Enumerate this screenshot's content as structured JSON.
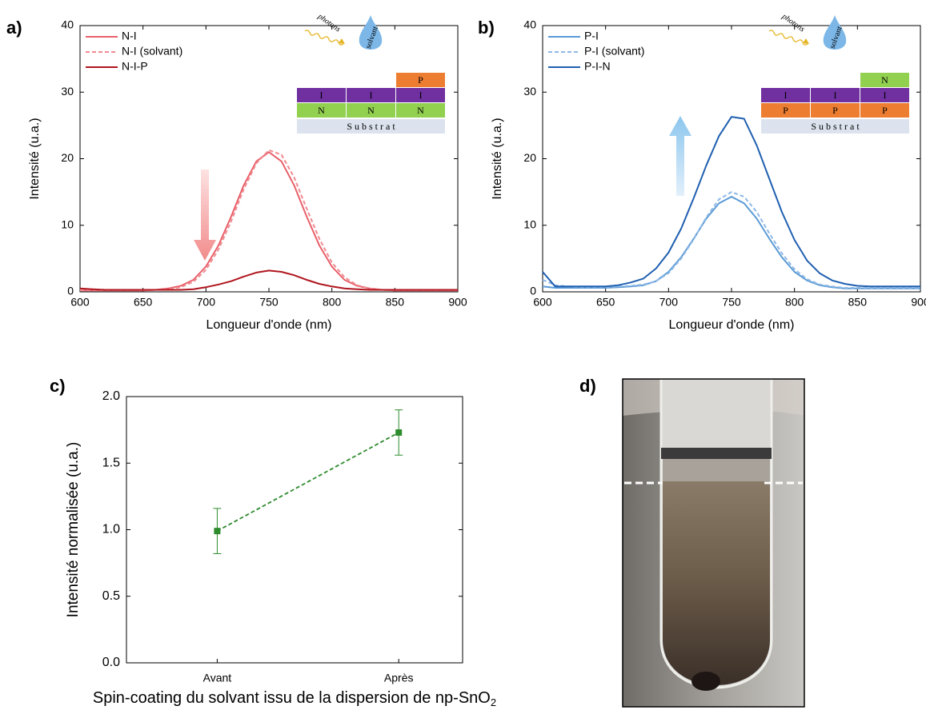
{
  "chart_data": [
    {
      "type": "line",
      "panel": "a)",
      "xlabel": "Longueur d'onde (nm)",
      "ylabel": "Intensité (u.a.)",
      "xlim": [
        600,
        900
      ],
      "ylim": [
        0,
        40
      ],
      "xticks": [
        600,
        650,
        700,
        750,
        800,
        850,
        900
      ],
      "yticks": [
        0,
        10,
        20,
        30,
        40
      ],
      "x": [
        600,
        610,
        620,
        630,
        640,
        650,
        660,
        670,
        680,
        690,
        700,
        710,
        720,
        730,
        740,
        750,
        760,
        770,
        780,
        790,
        800,
        810,
        820,
        830,
        840,
        850,
        860,
        870,
        880,
        890,
        900
      ],
      "series": [
        {
          "name": "N-I",
          "color": "#e8606a",
          "dash": false,
          "values": [
            0.2,
            0.2,
            0.2,
            0.2,
            0.2,
            0.2,
            0.3,
            0.5,
            0.9,
            1.8,
            3.8,
            7.0,
            11.3,
            16.0,
            19.6,
            21.0,
            19.6,
            16.0,
            11.3,
            7.0,
            3.8,
            1.8,
            0.9,
            0.5,
            0.3,
            0.2,
            0.2,
            0.2,
            0.2,
            0.2,
            0.2
          ]
        },
        {
          "name": "N-I (solvant)",
          "color": "#f08a90",
          "dash": true,
          "values": [
            0.2,
            0.2,
            0.2,
            0.2,
            0.2,
            0.2,
            0.3,
            0.4,
            0.7,
            1.5,
            3.3,
            6.4,
            10.6,
            15.4,
            19.3,
            21.3,
            20.6,
            17.2,
            12.5,
            8.0,
            4.4,
            2.2,
            1.0,
            0.5,
            0.3,
            0.2,
            0.2,
            0.2,
            0.2,
            0.2,
            0.2
          ]
        },
        {
          "name": "N-I-P",
          "color": "#b0151e",
          "dash": false,
          "values": [
            0.5,
            0.4,
            0.3,
            0.3,
            0.3,
            0.3,
            0.3,
            0.3,
            0.3,
            0.4,
            0.7,
            1.1,
            1.6,
            2.3,
            2.9,
            3.2,
            3.0,
            2.5,
            1.8,
            1.2,
            0.8,
            0.5,
            0.4,
            0.3,
            0.3,
            0.3,
            0.3,
            0.3,
            0.3,
            0.3,
            0.3
          ]
        }
      ],
      "inset": {
        "photons": "photons",
        "solvent": "solvant",
        "top_layer": "P",
        "middle_layer": [
          "I",
          "I",
          "I"
        ],
        "bottom_layer": [
          "N",
          "N",
          "N"
        ],
        "substrate": "S u b s t r a t"
      },
      "layer_colors": {
        "P": "#ed7d31",
        "I": "#7030a0",
        "N": "#92d050"
      }
    },
    {
      "type": "line",
      "panel": "b)",
      "xlabel": "Longueur d'onde (nm)",
      "ylabel": "Intensité (u.a.)",
      "xlim": [
        600,
        900
      ],
      "ylim": [
        0,
        40
      ],
      "xticks": [
        600,
        650,
        700,
        750,
        800,
        850,
        900
      ],
      "yticks": [
        0,
        10,
        20,
        30,
        40
      ],
      "x": [
        600,
        610,
        620,
        630,
        640,
        650,
        660,
        670,
        680,
        690,
        700,
        710,
        720,
        730,
        740,
        750,
        760,
        770,
        780,
        790,
        800,
        810,
        820,
        830,
        840,
        850,
        860,
        870,
        880,
        890,
        900
      ],
      "series": [
        {
          "name": "P-I",
          "color": "#5b9bd5",
          "dash": false,
          "values": [
            0.8,
            0.6,
            0.6,
            0.6,
            0.6,
            0.6,
            0.7,
            0.8,
            1.0,
            1.6,
            3.0,
            5.2,
            8.0,
            11.0,
            13.3,
            14.3,
            13.3,
            11.0,
            8.0,
            5.2,
            3.0,
            1.7,
            1.0,
            0.7,
            0.5,
            0.5,
            0.5,
            0.5,
            0.5,
            0.5,
            0.5
          ]
        },
        {
          "name": "P-I (solvant)",
          "color": "#8fb8e6",
          "dash": true,
          "values": [
            1.8,
            1.0,
            0.8,
            0.7,
            0.7,
            0.7,
            0.8,
            0.9,
            1.1,
            1.6,
            2.8,
            5.0,
            7.9,
            11.2,
            13.9,
            15.0,
            14.3,
            12.0,
            8.8,
            5.8,
            3.4,
            1.9,
            1.1,
            0.8,
            0.6,
            0.6,
            0.6,
            0.6,
            0.6,
            0.6,
            0.6
          ]
        },
        {
          "name": "P-I-N",
          "color": "#1f5fb0",
          "dash": false,
          "values": [
            3.0,
            0.8,
            0.8,
            0.8,
            0.8,
            0.8,
            1.0,
            1.4,
            2.0,
            3.5,
            5.9,
            9.5,
            14.1,
            19.0,
            23.4,
            26.3,
            26.0,
            22.0,
            17.0,
            12.0,
            7.8,
            4.7,
            2.8,
            1.7,
            1.2,
            0.9,
            0.8,
            0.8,
            0.8,
            0.8,
            0.8
          ]
        }
      ],
      "inset": {
        "photons": "photons",
        "solvent": "solvant",
        "top_layer": "N",
        "middle_layer": [
          "I",
          "I",
          "I"
        ],
        "bottom_layer": [
          "P",
          "P",
          "P"
        ],
        "substrate": "S u b s t r a t"
      },
      "layer_colors": {
        "P": "#ed7d31",
        "I": "#7030a0",
        "N": "#92d050"
      }
    },
    {
      "type": "errorline",
      "panel": "c)",
      "xlabel": [
        "Spin-coating du solvant issu de la dispersion de np-SnO",
        "2"
      ],
      "ylabel": "Intensité normalisée (u.a.)",
      "categories": [
        "Avant",
        "Après"
      ],
      "values": [
        0.99,
        1.73
      ],
      "errors": [
        0.17,
        0.17
      ],
      "color": "#2e8b2e",
      "ylim": [
        0,
        2
      ],
      "yticks": [
        {
          "value": 0,
          "label": "0.0"
        },
        0.5,
        {
          "value": 1,
          "label": "1.0"
        },
        1.5,
        {
          "value": 2,
          "label": "2.0"
        }
      ]
    }
  ],
  "photo": {
    "panel": "d)"
  }
}
